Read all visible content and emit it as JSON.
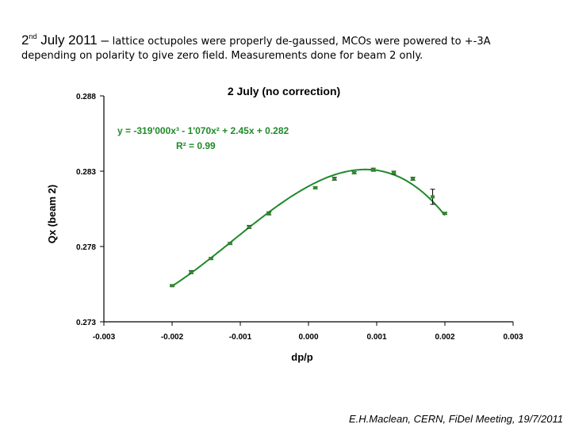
{
  "slide": {
    "title_date_day": "2",
    "title_date_sup": "nd",
    "title_date_rest": " July 2011 – ",
    "title_text": "lattice octupoles were properly de-gaussed, MCOs were powered to +-3A",
    "title_line2": "depending on polarity to give zero field. Measurements done for beam 2 only.",
    "footer": "E.H.Maclean, CERN, FiDel Meeting, 19/7/2011"
  },
  "chart_data": {
    "type": "scatter",
    "title": "2 July (no correction)",
    "xlabel": "dp/p",
    "ylabel": "Qx (beam 2)",
    "xlim": [
      -0.003,
      0.003
    ],
    "ylim": [
      0.273,
      0.288
    ],
    "xticks": [
      -0.003,
      -0.002,
      -0.001,
      0.0,
      0.001,
      0.002,
      0.003
    ],
    "xtick_labels": [
      "-0.003",
      "-0.002",
      "-0.001",
      "0.000",
      "0.001",
      "0.002",
      "0.003"
    ],
    "yticks": [
      0.273,
      0.278,
      0.283,
      0.288
    ],
    "ytick_labels": [
      "0.273",
      "0.278",
      "0.283",
      "0.288"
    ],
    "grid": false,
    "series_color": "#2e8b2e",
    "fit_color": "#1f8a2a",
    "fit_equation": "y = -319'000x³ - 1'070x² + 2.45x + 0.282",
    "fit_r2": "R² = 0.99",
    "fit_coefficients": [
      -319000,
      -1070,
      2.45,
      0.282
    ],
    "fit_range": [
      -0.002,
      0.002
    ],
    "points": [
      {
        "x": -0.002,
        "y": 0.2754,
        "err": 5e-05
      },
      {
        "x": -0.00172,
        "y": 0.2763,
        "err": 0.0001
      },
      {
        "x": -0.00143,
        "y": 0.2772,
        "err": 7e-05
      },
      {
        "x": -0.00115,
        "y": 0.2782,
        "err": 7e-05
      },
      {
        "x": -0.00087,
        "y": 0.2793,
        "err": 0.0001
      },
      {
        "x": -0.00058,
        "y": 0.2802,
        "err": 0.0001
      },
      {
        "x": 0.0001,
        "y": 0.2819,
        "err": 7e-05
      },
      {
        "x": 0.00038,
        "y": 0.2825,
        "err": 0.0001
      },
      {
        "x": 0.00067,
        "y": 0.2829,
        "err": 7e-05
      },
      {
        "x": 0.00095,
        "y": 0.2831,
        "err": 0.0001
      },
      {
        "x": 0.00125,
        "y": 0.2829,
        "err": 0.0001
      },
      {
        "x": 0.00153,
        "y": 0.2825,
        "err": 0.0001
      },
      {
        "x": 0.00182,
        "y": 0.2813,
        "err": 0.0005
      },
      {
        "x": 0.002,
        "y": 0.2802,
        "err": 7e-05
      }
    ]
  }
}
